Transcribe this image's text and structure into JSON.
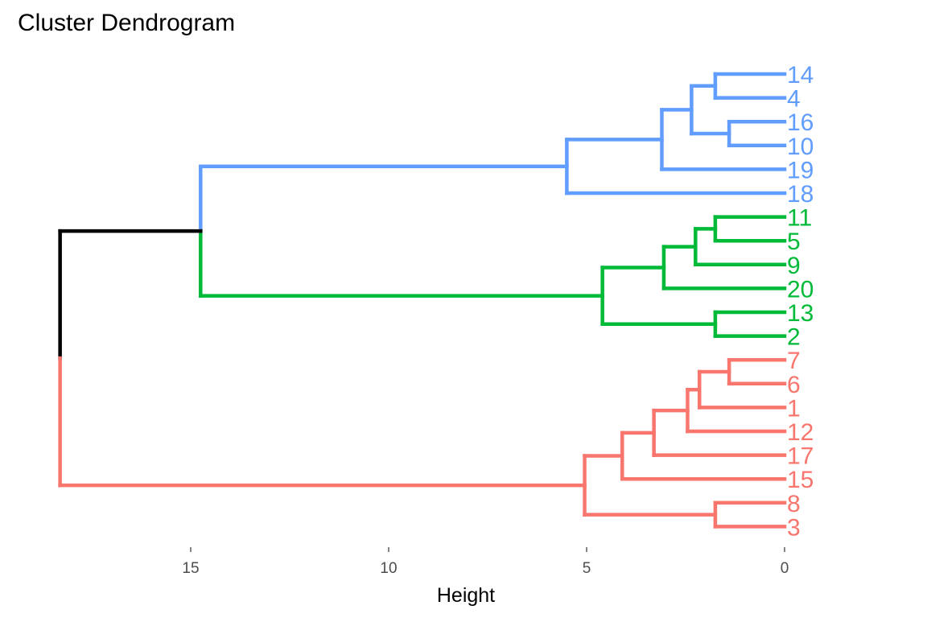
{
  "chart_data": {
    "type": "dendrogram",
    "title": "Cluster Dendrogram",
    "xlabel": "Height",
    "orientation": "horizontal",
    "x_ticks": [
      15,
      10,
      5,
      0
    ],
    "xlim": [
      18.3,
      0
    ],
    "leaves": [
      {
        "label": "14",
        "cluster": "blue"
      },
      {
        "label": "4",
        "cluster": "blue"
      },
      {
        "label": "16",
        "cluster": "blue"
      },
      {
        "label": "10",
        "cluster": "blue"
      },
      {
        "label": "19",
        "cluster": "blue"
      },
      {
        "label": "18",
        "cluster": "blue"
      },
      {
        "label": "11",
        "cluster": "green"
      },
      {
        "label": "5",
        "cluster": "green"
      },
      {
        "label": "9",
        "cluster": "green"
      },
      {
        "label": "20",
        "cluster": "green"
      },
      {
        "label": "13",
        "cluster": "green"
      },
      {
        "label": "2",
        "cluster": "green"
      },
      {
        "label": "7",
        "cluster": "red"
      },
      {
        "label": "6",
        "cluster": "red"
      },
      {
        "label": "1",
        "cluster": "red"
      },
      {
        "label": "12",
        "cluster": "red"
      },
      {
        "label": "17",
        "cluster": "red"
      },
      {
        "label": "15",
        "cluster": "red"
      },
      {
        "label": "8",
        "cluster": "red"
      },
      {
        "label": "3",
        "cluster": "red"
      }
    ],
    "merges": [
      {
        "a": "14",
        "b": "4",
        "height": 1.75,
        "cluster": "blue"
      },
      {
        "a": "16",
        "b": "10",
        "height": 1.4,
        "cluster": "blue"
      },
      {
        "a": "14+4",
        "b": "16+10",
        "height": 2.35,
        "cluster": "blue"
      },
      {
        "a": "14+4+16+10",
        "b": "19",
        "height": 3.1,
        "cluster": "blue"
      },
      {
        "a": "14+4+16+10+19",
        "b": "18",
        "height": 5.5,
        "cluster": "blue"
      },
      {
        "a": "11",
        "b": "5",
        "height": 1.75,
        "cluster": "green"
      },
      {
        "a": "11+5",
        "b": "9",
        "height": 2.25,
        "cluster": "green"
      },
      {
        "a": "11+5+9",
        "b": "20",
        "height": 3.05,
        "cluster": "green"
      },
      {
        "a": "13",
        "b": "2",
        "height": 1.75,
        "cluster": "green"
      },
      {
        "a": "11+5+9+20",
        "b": "13+2",
        "height": 4.6,
        "cluster": "green"
      },
      {
        "a": "blue-cluster",
        "b": "green-cluster",
        "height": 14.75,
        "cluster": "blue-green"
      },
      {
        "a": "7",
        "b": "6",
        "height": 1.4,
        "cluster": "red"
      },
      {
        "a": "7+6",
        "b": "1",
        "height": 2.15,
        "cluster": "red"
      },
      {
        "a": "7+6+1",
        "b": "12",
        "height": 2.45,
        "cluster": "red"
      },
      {
        "a": "7+6+1+12",
        "b": "17",
        "height": 3.3,
        "cluster": "red"
      },
      {
        "a": "7+6+1+12+17",
        "b": "15",
        "height": 4.1,
        "cluster": "red"
      },
      {
        "a": "8",
        "b": "3",
        "height": 1.75,
        "cluster": "red"
      },
      {
        "a": "7+6+1+12+17+15",
        "b": "8+3",
        "height": 5.05,
        "cluster": "red"
      },
      {
        "a": "blue-green",
        "b": "red-cluster",
        "height": 18.3,
        "cluster": "root"
      }
    ],
    "grid": false,
    "legend": "none"
  },
  "colors": {
    "blue": "#619CFF",
    "green": "#00BA38",
    "red": "#F8766D",
    "root": "#000000"
  }
}
